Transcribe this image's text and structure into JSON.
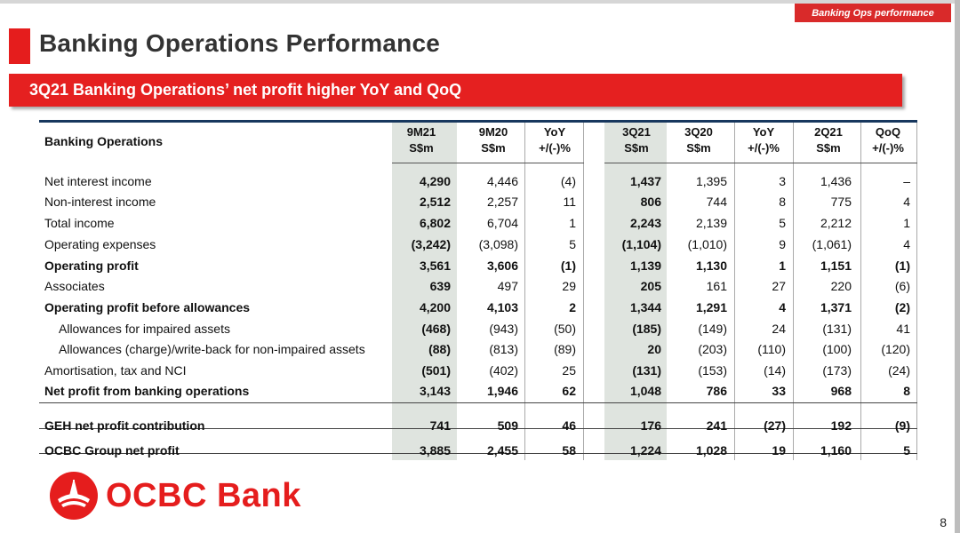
{
  "corner_tag": "Banking Ops performance",
  "page_title": "Banking Operations Performance",
  "subtitle": "3Q21 Banking Operations’ net profit higher YoY and QoQ",
  "table": {
    "row_header": "Banking Operations",
    "columns": [
      {
        "line1": "9M21",
        "line2": "S$m"
      },
      {
        "line1": "9M20",
        "line2": "S$m"
      },
      {
        "line1": "YoY",
        "line2": "+/(-)%"
      },
      {
        "line1": "3Q21",
        "line2": "S$m"
      },
      {
        "line1": "3Q20",
        "line2": "S$m"
      },
      {
        "line1": "YoY",
        "line2": "+/(-)%"
      },
      {
        "line1": "2Q21",
        "line2": "S$m"
      },
      {
        "line1": "QoQ",
        "line2": "+/(-)%"
      }
    ],
    "rows": [
      {
        "label": "Net interest income",
        "values": [
          "4,290",
          "4,446",
          "(4)",
          "1,437",
          "1,395",
          "3",
          "1,436",
          "–"
        ]
      },
      {
        "label": "Non-interest income",
        "values": [
          "2,512",
          "2,257",
          "11",
          "806",
          "744",
          "8",
          "775",
          "4"
        ]
      },
      {
        "label": "Total income",
        "values": [
          "6,802",
          "6,704",
          "1",
          "2,243",
          "2,139",
          "5",
          "2,212",
          "1"
        ]
      },
      {
        "label": "Operating expenses",
        "values": [
          "(3,242)",
          "(3,098)",
          "5",
          "(1,104)",
          "(1,010)",
          "9",
          "(1,061)",
          "4"
        ]
      },
      {
        "label": "Operating profit",
        "values": [
          "3,561",
          "3,606",
          "(1)",
          "1,139",
          "1,130",
          "1",
          "1,151",
          "(1)"
        ]
      },
      {
        "label": "Associates",
        "values": [
          "639",
          "497",
          "29",
          "205",
          "161",
          "27",
          "220",
          "(6)"
        ]
      },
      {
        "label": "Operating profit before allowances",
        "values": [
          "4,200",
          "4,103",
          "2",
          "1,344",
          "1,291",
          "4",
          "1,371",
          "(2)"
        ]
      },
      {
        "label": "Allowances for impaired assets",
        "values": [
          "(468)",
          "(943)",
          "(50)",
          "(185)",
          "(149)",
          "24",
          "(131)",
          "41"
        ]
      },
      {
        "label": "Allowances (charge)/write-back for non-impaired assets",
        "values": [
          "(88)",
          "(813)",
          "(89)",
          "20",
          "(203)",
          "(110)",
          "(100)",
          "(120)"
        ]
      },
      {
        "label": "Amortisation, tax and NCI",
        "values": [
          "(501)",
          "(402)",
          "25",
          "(131)",
          "(153)",
          "(14)",
          "(173)",
          "(24)"
        ]
      },
      {
        "label": "Net profit from banking operations",
        "values": [
          "3,143",
          "1,946",
          "62",
          "1,048",
          "786",
          "33",
          "968",
          "8"
        ]
      },
      {
        "label": "GEH net profit contribution",
        "values": [
          "741",
          "509",
          "46",
          "176",
          "241",
          "(27)",
          "192",
          "(9)"
        ]
      },
      {
        "label": "OCBC Group net profit",
        "values": [
          "3,885",
          "2,455",
          "58",
          "1,224",
          "1,028",
          "19",
          "1,160",
          "5"
        ]
      }
    ]
  },
  "logo": {
    "text": "OCBC Bank",
    "color": "#e51d1d"
  },
  "page_number": "8"
}
